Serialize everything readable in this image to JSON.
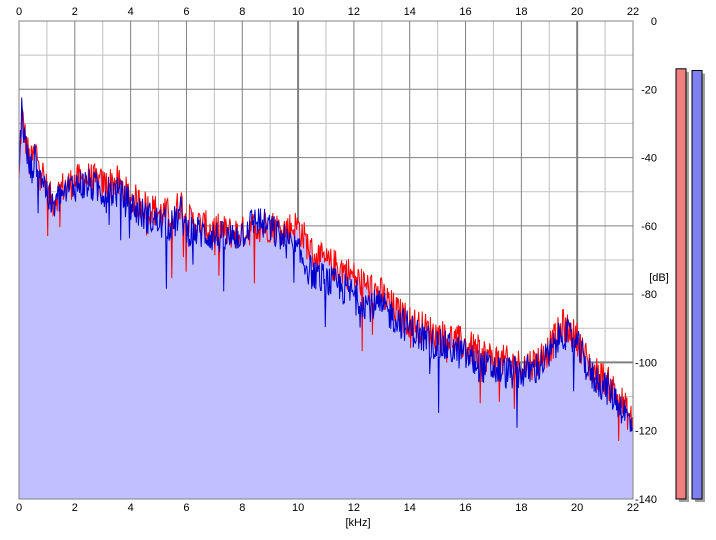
{
  "colors": {
    "background": "#ffffff",
    "grid_major": "#808080",
    "grid_minor": "#c0c0c0",
    "fill": "#c0c0ff",
    "left_channel": "#ff0000",
    "right_channel": "#0000cc",
    "meter_left": "#f08080",
    "meter_right": "#8080f0"
  },
  "chart_data": {
    "type": "line",
    "title": "",
    "xlabel": "[kHz]",
    "ylabel": "[dB]",
    "xlim": [
      0,
      22
    ],
    "ylim": [
      -140,
      0
    ],
    "x_ticks": [
      "0",
      "2",
      "4",
      "6",
      "8",
      "10",
      "12",
      "14",
      "16",
      "18",
      "20",
      "22"
    ],
    "y_ticks": [
      "0",
      "-20",
      "-40",
      "-60",
      "-80",
      "-100",
      "-120",
      "-140"
    ],
    "grid": true,
    "fill_under_series": true,
    "series": [
      {
        "color": "#ff0000",
        "x": [
          0,
          0.1,
          0.2,
          0.4,
          0.6,
          0.8,
          1.0,
          1.2,
          1.5,
          2.0,
          2.5,
          3.0,
          3.5,
          4.0,
          4.5,
          5.0,
          5.5,
          5.8,
          6.0,
          6.5,
          7.0,
          7.5,
          8.0,
          8.5,
          9.0,
          9.5,
          10.0,
          10.5,
          11.0,
          11.5,
          12.0,
          12.5,
          13.0,
          13.5,
          14.0,
          14.5,
          15.0,
          15.5,
          16.0,
          16.5,
          17.0,
          17.5,
          18.0,
          18.5,
          19.0,
          19.5,
          20.0,
          20.5,
          21.0,
          21.5,
          22.0
        ],
        "values": [
          -48,
          -27,
          -33,
          -42,
          -38,
          -43,
          -50,
          -53,
          -49,
          -47,
          -46,
          -48,
          -47,
          -52,
          -54,
          -56,
          -57,
          -53,
          -58,
          -60,
          -61,
          -62,
          -62,
          -60,
          -60,
          -61,
          -60,
          -68,
          -71,
          -72,
          -75,
          -78,
          -80,
          -85,
          -88,
          -90,
          -92,
          -93,
          -95,
          -97,
          -99,
          -100,
          -101,
          -100,
          -96,
          -89,
          -93,
          -102,
          -105,
          -110,
          -118
        ]
      },
      {
        "color": "#0000cc",
        "x": [
          0,
          0.1,
          0.2,
          0.4,
          0.6,
          0.8,
          1.0,
          1.2,
          1.5,
          2.0,
          2.5,
          3.0,
          3.5,
          4.0,
          4.5,
          5.0,
          5.5,
          5.8,
          6.0,
          6.5,
          7.0,
          7.5,
          8.0,
          8.5,
          9.0,
          9.5,
          10.0,
          10.5,
          11.0,
          11.5,
          12.0,
          12.5,
          13.0,
          13.5,
          14.0,
          14.5,
          15.0,
          15.5,
          16.0,
          16.5,
          17.0,
          17.5,
          18.0,
          18.5,
          19.0,
          19.5,
          20.0,
          20.5,
          21.0,
          21.5,
          22.0
        ],
        "values": [
          -45,
          -25,
          -35,
          -44,
          -40,
          -45,
          -50,
          -55,
          -51,
          -48,
          -48,
          -50,
          -50,
          -54,
          -57,
          -59,
          -60,
          -56,
          -61,
          -62,
          -63,
          -64,
          -62,
          -58,
          -61,
          -64,
          -68,
          -74,
          -76,
          -78,
          -80,
          -83,
          -84,
          -87,
          -90,
          -93,
          -95,
          -96,
          -98,
          -101,
          -102,
          -103,
          -103,
          -102,
          -98,
          -91,
          -95,
          -104,
          -107,
          -112,
          -119
        ]
      }
    ],
    "meters": [
      {
        "channel": "left",
        "color": "#f08080",
        "value": -14
      },
      {
        "channel": "right",
        "color": "#8080f0",
        "value": -14.5
      }
    ]
  }
}
